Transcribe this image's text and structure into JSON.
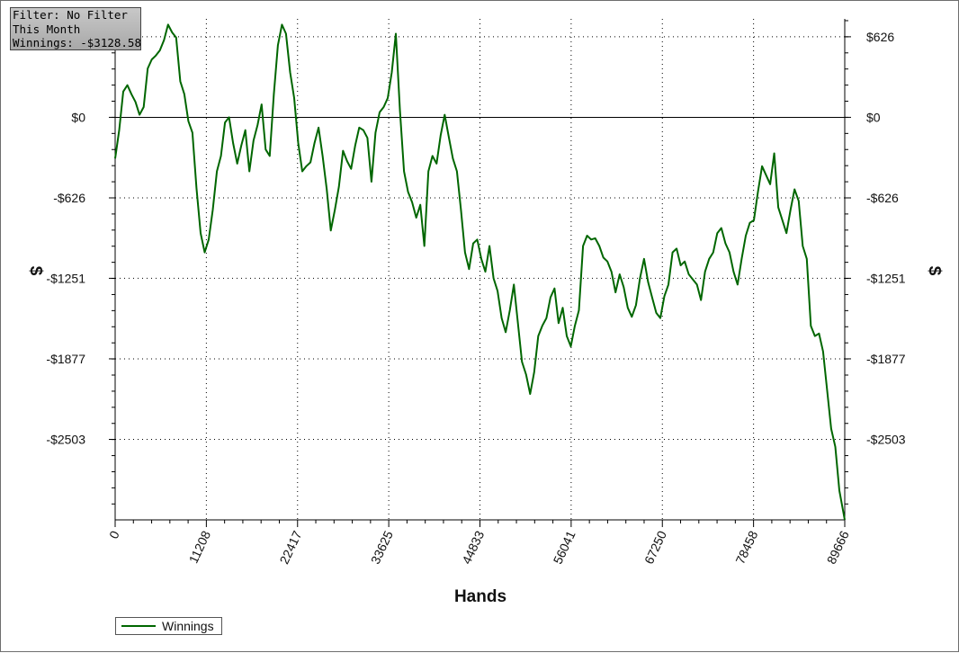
{
  "info_box": {
    "filter": "Filter: No Filter",
    "period": "This Month",
    "winnings": "Winnings: -$3128.58"
  },
  "chart_data": {
    "type": "line",
    "x_label": "Hands",
    "y_label": "$",
    "xlim": [
      0,
      89666
    ],
    "ylim": [
      -3128.58,
      765
    ],
    "x_ticks": [
      0,
      11208,
      22417,
      33625,
      44833,
      56041,
      67250,
      78458,
      89666
    ],
    "x_tick_labels": [
      "0",
      "11208",
      "22417",
      "33625",
      "44833",
      "56041",
      "67250",
      "78458",
      "89666"
    ],
    "y_ticks": [
      626,
      0,
      -626,
      -1251,
      -1877,
      -2503
    ],
    "y_tick_labels": [
      "$626",
      "$0",
      "-$626",
      "-$1251",
      "-$1877",
      "-$2503"
    ],
    "grid": true,
    "zero_line": true,
    "line_color": "#006600",
    "legend_position": "bottom-left",
    "series": [
      {
        "name": "Winnings",
        "points": [
          [
            0,
            -320
          ],
          [
            500,
            -100
          ],
          [
            1000,
            200
          ],
          [
            1500,
            250
          ],
          [
            2000,
            180
          ],
          [
            2500,
            120
          ],
          [
            3000,
            20
          ],
          [
            3500,
            80
          ],
          [
            4000,
            380
          ],
          [
            4500,
            450
          ],
          [
            5000,
            480
          ],
          [
            5500,
            520
          ],
          [
            6000,
            600
          ],
          [
            6500,
            720
          ],
          [
            7000,
            660
          ],
          [
            7500,
            620
          ],
          [
            8000,
            280
          ],
          [
            8500,
            180
          ],
          [
            9000,
            -30
          ],
          [
            9500,
            -120
          ],
          [
            10000,
            -550
          ],
          [
            10500,
            -900
          ],
          [
            11000,
            -1050
          ],
          [
            11500,
            -950
          ],
          [
            12000,
            -720
          ],
          [
            12500,
            -420
          ],
          [
            13000,
            -300
          ],
          [
            13500,
            -40
          ],
          [
            14000,
            0
          ],
          [
            14500,
            -200
          ],
          [
            15000,
            -360
          ],
          [
            15500,
            -220
          ],
          [
            16000,
            -100
          ],
          [
            16500,
            -420
          ],
          [
            17000,
            -180
          ],
          [
            17500,
            -60
          ],
          [
            18000,
            100
          ],
          [
            18500,
            -250
          ],
          [
            19000,
            -300
          ],
          [
            19500,
            180
          ],
          [
            20000,
            560
          ],
          [
            20500,
            720
          ],
          [
            21000,
            650
          ],
          [
            21500,
            350
          ],
          [
            22000,
            150
          ],
          [
            22500,
            -200
          ],
          [
            23000,
            -420
          ],
          [
            23500,
            -380
          ],
          [
            24000,
            -350
          ],
          [
            24500,
            -200
          ],
          [
            25000,
            -80
          ],
          [
            25500,
            -300
          ],
          [
            26000,
            -560
          ],
          [
            26500,
            -880
          ],
          [
            27000,
            -720
          ],
          [
            27500,
            -540
          ],
          [
            28000,
            -260
          ],
          [
            28500,
            -340
          ],
          [
            29000,
            -400
          ],
          [
            29500,
            -220
          ],
          [
            30000,
            -80
          ],
          [
            30500,
            -100
          ],
          [
            31000,
            -160
          ],
          [
            31500,
            -500
          ],
          [
            32000,
            -120
          ],
          [
            32500,
            40
          ],
          [
            33000,
            80
          ],
          [
            33500,
            150
          ],
          [
            34000,
            350
          ],
          [
            34500,
            650
          ],
          [
            35000,
            50
          ],
          [
            35500,
            -420
          ],
          [
            36000,
            -580
          ],
          [
            36500,
            -660
          ],
          [
            37000,
            -780
          ],
          [
            37500,
            -680
          ],
          [
            38000,
            -1000
          ],
          [
            38500,
            -420
          ],
          [
            39000,
            -300
          ],
          [
            39500,
            -360
          ],
          [
            40000,
            -140
          ],
          [
            40500,
            20
          ],
          [
            41000,
            -150
          ],
          [
            41500,
            -320
          ],
          [
            42000,
            -420
          ],
          [
            42500,
            -720
          ],
          [
            43000,
            -1050
          ],
          [
            43500,
            -1180
          ],
          [
            44000,
            -980
          ],
          [
            44500,
            -950
          ],
          [
            45000,
            -1100
          ],
          [
            45500,
            -1200
          ],
          [
            46000,
            -1000
          ],
          [
            46500,
            -1250
          ],
          [
            47000,
            -1350
          ],
          [
            47500,
            -1560
          ],
          [
            48000,
            -1670
          ],
          [
            48500,
            -1500
          ],
          [
            49000,
            -1300
          ],
          [
            49500,
            -1600
          ],
          [
            50000,
            -1900
          ],
          [
            50500,
            -2000
          ],
          [
            51000,
            -2150
          ],
          [
            51500,
            -1980
          ],
          [
            52000,
            -1700
          ],
          [
            52500,
            -1620
          ],
          [
            53000,
            -1560
          ],
          [
            53500,
            -1400
          ],
          [
            54000,
            -1330
          ],
          [
            54500,
            -1600
          ],
          [
            55000,
            -1480
          ],
          [
            55500,
            -1700
          ],
          [
            56000,
            -1780
          ],
          [
            56500,
            -1620
          ],
          [
            57000,
            -1500
          ],
          [
            57500,
            -1000
          ],
          [
            58000,
            -920
          ],
          [
            58500,
            -950
          ],
          [
            59000,
            -940
          ],
          [
            59500,
            -1000
          ],
          [
            60000,
            -1090
          ],
          [
            60500,
            -1120
          ],
          [
            61000,
            -1200
          ],
          [
            61500,
            -1360
          ],
          [
            62000,
            -1220
          ],
          [
            62500,
            -1320
          ],
          [
            63000,
            -1480
          ],
          [
            63500,
            -1550
          ],
          [
            64000,
            -1460
          ],
          [
            64500,
            -1250
          ],
          [
            65000,
            -1100
          ],
          [
            65500,
            -1280
          ],
          [
            66000,
            -1400
          ],
          [
            66500,
            -1520
          ],
          [
            67000,
            -1560
          ],
          [
            67500,
            -1390
          ],
          [
            68000,
            -1300
          ],
          [
            68500,
            -1050
          ],
          [
            69000,
            -1020
          ],
          [
            69500,
            -1150
          ],
          [
            70000,
            -1120
          ],
          [
            70500,
            -1220
          ],
          [
            71000,
            -1260
          ],
          [
            71500,
            -1300
          ],
          [
            72000,
            -1420
          ],
          [
            72500,
            -1200
          ],
          [
            73000,
            -1100
          ],
          [
            73500,
            -1050
          ],
          [
            74000,
            -900
          ],
          [
            74500,
            -860
          ],
          [
            75000,
            -980
          ],
          [
            75500,
            -1050
          ],
          [
            76000,
            -1200
          ],
          [
            76500,
            -1300
          ],
          [
            77000,
            -1100
          ],
          [
            77500,
            -920
          ],
          [
            78000,
            -820
          ],
          [
            78500,
            -800
          ],
          [
            79000,
            -580
          ],
          [
            79500,
            -380
          ],
          [
            80000,
            -450
          ],
          [
            80500,
            -520
          ],
          [
            81000,
            -280
          ],
          [
            81500,
            -700
          ],
          [
            82000,
            -800
          ],
          [
            82500,
            -900
          ],
          [
            83000,
            -720
          ],
          [
            83500,
            -560
          ],
          [
            84000,
            -650
          ],
          [
            84500,
            -1000
          ],
          [
            85000,
            -1100
          ],
          [
            85500,
            -1620
          ],
          [
            86000,
            -1700
          ],
          [
            86500,
            -1680
          ],
          [
            87000,
            -1820
          ],
          [
            87500,
            -2120
          ],
          [
            88000,
            -2420
          ],
          [
            88500,
            -2560
          ],
          [
            89000,
            -2900
          ],
          [
            89666,
            -3128.58
          ]
        ]
      }
    ],
    "legend": [
      "Winnings"
    ]
  }
}
